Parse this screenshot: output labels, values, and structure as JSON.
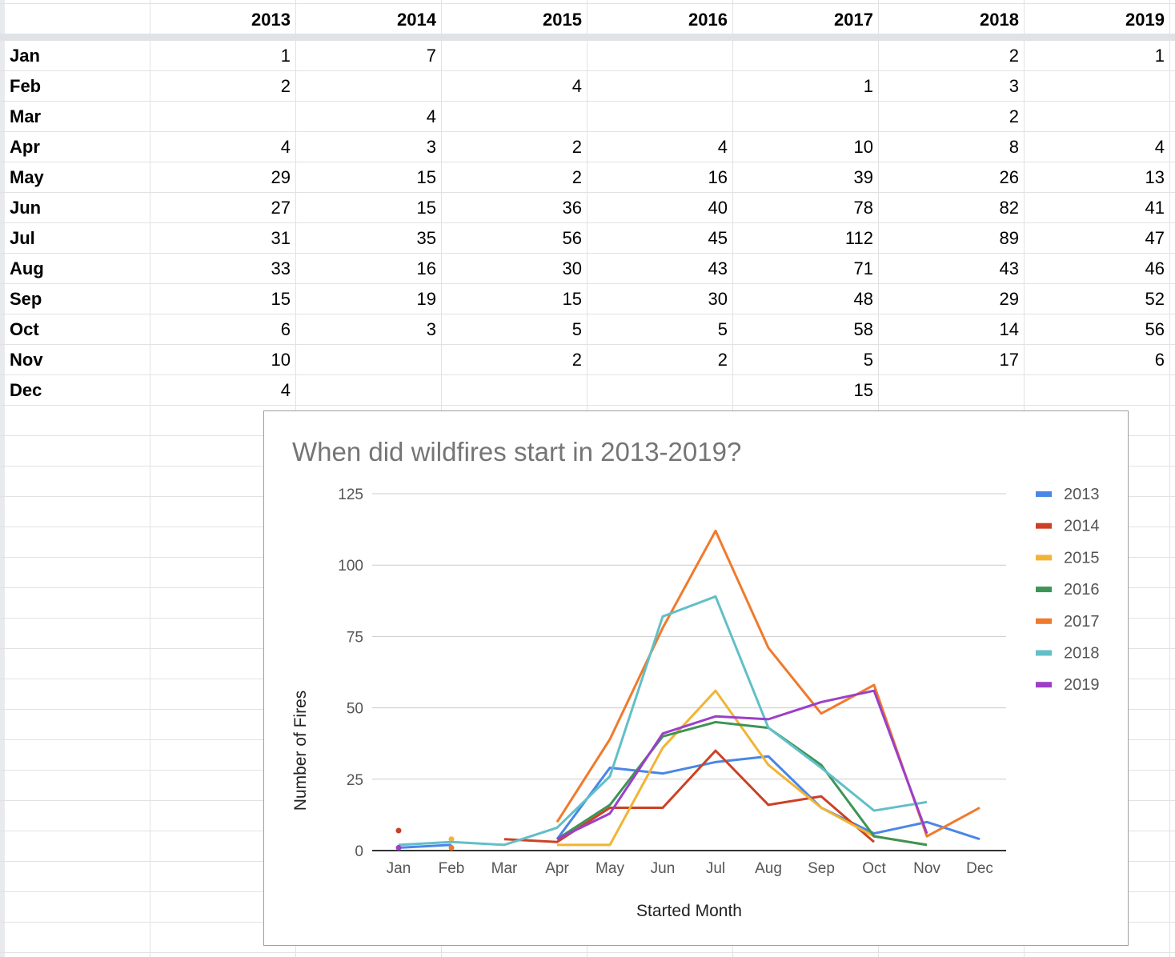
{
  "sheet": {
    "years": [
      "2013",
      "2014",
      "2015",
      "2016",
      "2017",
      "2018",
      "2019"
    ],
    "rows": [
      {
        "month": "Jan",
        "cells": [
          "1",
          "7",
          "",
          "",
          "",
          "2",
          "1"
        ]
      },
      {
        "month": "Feb",
        "cells": [
          "2",
          "",
          "4",
          "",
          "1",
          "3",
          ""
        ]
      },
      {
        "month": "Mar",
        "cells": [
          "",
          "4",
          "",
          "",
          "",
          "2",
          ""
        ]
      },
      {
        "month": "Apr",
        "cells": [
          "4",
          "3",
          "2",
          "4",
          "10",
          "8",
          "4"
        ]
      },
      {
        "month": "May",
        "cells": [
          "29",
          "15",
          "2",
          "16",
          "39",
          "26",
          "13"
        ]
      },
      {
        "month": "Jun",
        "cells": [
          "27",
          "15",
          "36",
          "40",
          "78",
          "82",
          "41"
        ]
      },
      {
        "month": "Jul",
        "cells": [
          "31",
          "35",
          "56",
          "45",
          "112",
          "89",
          "47"
        ]
      },
      {
        "month": "Aug",
        "cells": [
          "33",
          "16",
          "30",
          "43",
          "71",
          "43",
          "46"
        ]
      },
      {
        "month": "Sep",
        "cells": [
          "15",
          "19",
          "15",
          "30",
          "48",
          "29",
          "52"
        ]
      },
      {
        "month": "Oct",
        "cells": [
          "6",
          "3",
          "5",
          "5",
          "58",
          "14",
          "56"
        ]
      },
      {
        "month": "Nov",
        "cells": [
          "10",
          "",
          "2",
          "2",
          "5",
          "17",
          "6"
        ]
      },
      {
        "month": "Dec",
        "cells": [
          "4",
          "",
          "",
          "",
          "15",
          "",
          ""
        ]
      }
    ]
  },
  "chart_data": {
    "type": "line",
    "title": "When did wildfires start in 2013-2019?",
    "xlabel": "Started Month",
    "ylabel": "Number of Fires",
    "categories": [
      "Jan",
      "Feb",
      "Mar",
      "Apr",
      "May",
      "Jun",
      "Jul",
      "Aug",
      "Sep",
      "Oct",
      "Nov",
      "Dec"
    ],
    "ylim": [
      0,
      125
    ],
    "yticks": [
      "0",
      "25",
      "50",
      "75",
      "100",
      "125"
    ],
    "grid": true,
    "legend": "right",
    "series": [
      {
        "name": "2013",
        "color": "#4a86e8",
        "values": [
          1,
          2,
          null,
          4,
          29,
          27,
          31,
          33,
          15,
          6,
          10,
          4
        ]
      },
      {
        "name": "2014",
        "color": "#cc4125",
        "values": [
          7,
          null,
          4,
          3,
          15,
          15,
          35,
          16,
          19,
          3,
          null,
          null
        ]
      },
      {
        "name": "2015",
        "color": "#f1b434",
        "values": [
          null,
          4,
          null,
          2,
          2,
          36,
          56,
          30,
          15,
          5,
          2,
          null
        ]
      },
      {
        "name": "2016",
        "color": "#3d9456",
        "values": [
          null,
          null,
          null,
          4,
          16,
          40,
          45,
          43,
          30,
          5,
          2,
          null
        ]
      },
      {
        "name": "2017",
        "color": "#f07a2c",
        "values": [
          null,
          1,
          null,
          10,
          39,
          78,
          112,
          71,
          48,
          58,
          5,
          15
        ]
      },
      {
        "name": "2018",
        "color": "#62bfc7",
        "values": [
          2,
          3,
          2,
          8,
          26,
          82,
          89,
          43,
          29,
          14,
          17,
          null
        ]
      },
      {
        "name": "2019",
        "color": "#9c3fc8",
        "values": [
          1,
          null,
          null,
          4,
          13,
          41,
          47,
          46,
          52,
          56,
          6,
          null
        ]
      }
    ]
  }
}
